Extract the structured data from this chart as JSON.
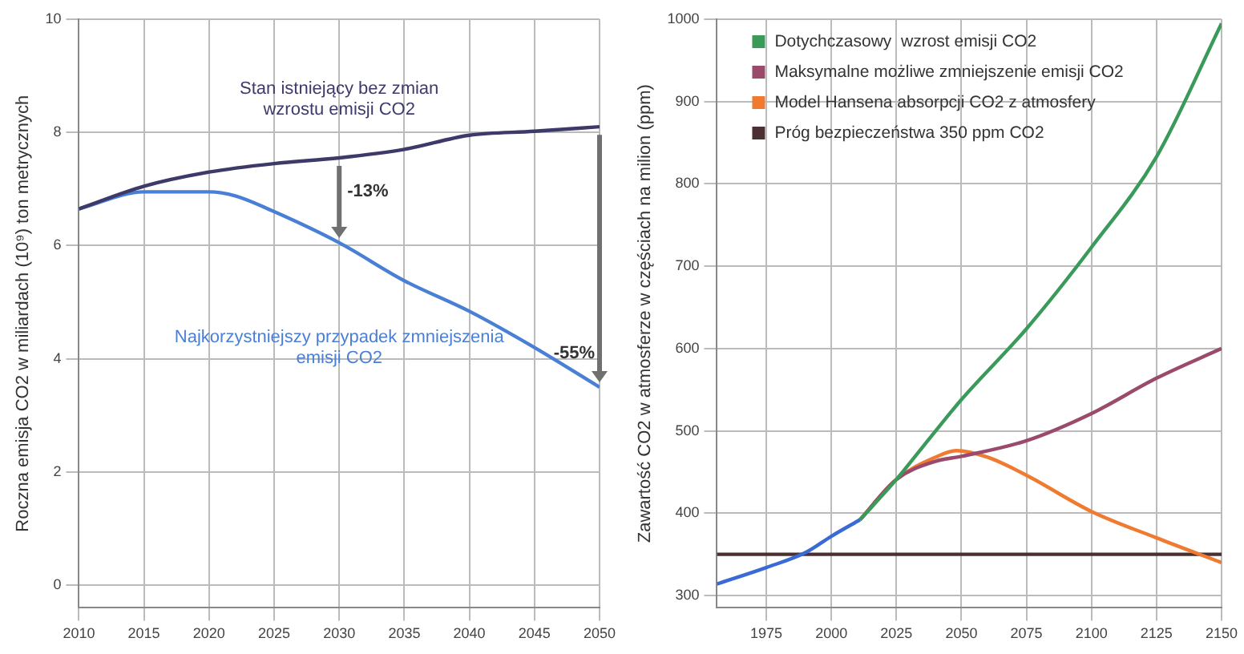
{
  "chart_data": [
    {
      "type": "line",
      "ylabel": "Roczna emisja CO2 w miliardach (10⁹) ton metrycznych",
      "xlim": [
        2010,
        2050
      ],
      "xticks": [
        2010,
        2015,
        2020,
        2025,
        2030,
        2035,
        2040,
        2045,
        2050
      ],
      "ylim": [
        -0.4,
        10
      ],
      "yticks": [
        0,
        2,
        4,
        6,
        8,
        10
      ],
      "grid": true,
      "legend": false,
      "series": [
        {
          "name": "Stan istniejący bez zmian wzrostu emisji CO2",
          "color": "#3d3a6a",
          "x": [
            2010,
            2015,
            2020,
            2025,
            2030,
            2035,
            2040,
            2045,
            2050
          ],
          "values": [
            6.65,
            7.05,
            7.3,
            7.45,
            7.55,
            7.7,
            7.95,
            8.02,
            8.1
          ]
        },
        {
          "name": "Najkorzystniejszy przypadek zmniejszenia emisji CO2",
          "color": "#4a7fd6",
          "x": [
            2010,
            2015,
            2020,
            2022,
            2025,
            2030,
            2035,
            2040,
            2045,
            2050
          ],
          "values": [
            6.65,
            6.95,
            6.95,
            6.88,
            6.6,
            6.05,
            5.38,
            4.84,
            4.2,
            3.5
          ]
        }
      ],
      "annotations": [
        {
          "text": "-13%",
          "x": 2030,
          "y": 6.05
        },
        {
          "text": "-55%",
          "x": 2050,
          "y": 3.5
        }
      ]
    },
    {
      "type": "line",
      "ylabel": "Zawartość CO2 w atmosferze w częściach na milion (ppm)",
      "xlim": [
        1956,
        2150
      ],
      "xticks": [
        1975,
        2000,
        2025,
        2050,
        2075,
        2100,
        2125,
        2150
      ],
      "ylim": [
        285,
        1000
      ],
      "yticks": [
        300,
        400,
        500,
        600,
        700,
        800,
        900,
        1000
      ],
      "grid": true,
      "legend": "top left",
      "series": [
        {
          "color": "#3a6ad6",
          "x": [
            1956,
            1975,
            1990,
            2000,
            2011
          ],
          "values": [
            314,
            334,
            352,
            372,
            392
          ]
        },
        {
          "name": "Dotychczasowy  wzrost emisji CO2",
          "color": "#3a9a5a",
          "x": [
            2011,
            2025,
            2035,
            2050,
            2075,
            2100,
            2125,
            2150
          ],
          "values": [
            392,
            441,
            480,
            538,
            624,
            723,
            833,
            995
          ]
        },
        {
          "name": "Maksymalne możliwe zmniejszenie emisji CO2",
          "color": "#9a4a6a",
          "x": [
            2011,
            2025,
            2040,
            2050,
            2075,
            2100,
            2125,
            2150
          ],
          "values": [
            392,
            441,
            463,
            469,
            488,
            521,
            564,
            600
          ]
        },
        {
          "name": "Model Hansena absorpcji CO2 z atmosfery",
          "color": "#f07a30",
          "x": [
            2011,
            2025,
            2040,
            2048,
            2060,
            2075,
            2100,
            2125,
            2150
          ],
          "values": [
            392,
            441,
            468,
            476,
            468,
            446,
            402,
            370,
            340
          ]
        },
        {
          "name": "Próg bezpieczeństwa 350 ppm CO2",
          "color": "#4a3030",
          "x": [
            1956,
            2150
          ],
          "values": [
            350,
            350
          ]
        }
      ]
    }
  ]
}
